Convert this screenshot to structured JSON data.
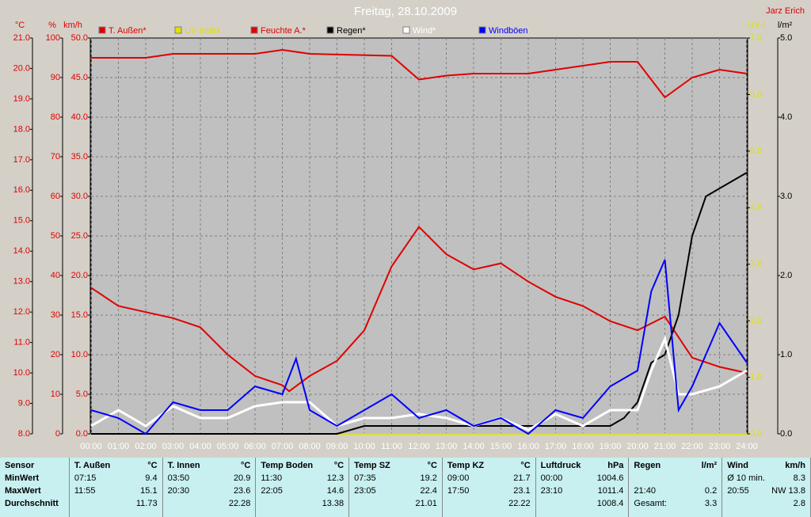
{
  "chart_data": {
    "type": "line",
    "title": "Freitag, 28.10.2009",
    "author": "Jarz Erich",
    "xlim": [
      0,
      24
    ],
    "xticks": [
      {
        "value": 0,
        "label": "00:00"
      },
      {
        "value": 1,
        "label": "01:00"
      },
      {
        "value": 2,
        "label": "02:00"
      },
      {
        "value": 3,
        "label": "03:00"
      },
      {
        "value": 4,
        "label": "04:00"
      },
      {
        "value": 5,
        "label": "05:00"
      },
      {
        "value": 6,
        "label": "06:00"
      },
      {
        "value": 7,
        "label": "07:00"
      },
      {
        "value": 8,
        "label": "08:00"
      },
      {
        "value": 9,
        "label": "09:00"
      },
      {
        "value": 10,
        "label": "10:00"
      },
      {
        "value": 11,
        "label": "11:00"
      },
      {
        "value": 12,
        "label": "12:00"
      },
      {
        "value": 13,
        "label": "13:00"
      },
      {
        "value": 14,
        "label": "14:00"
      },
      {
        "value": 15,
        "label": "15:00"
      },
      {
        "value": 16,
        "label": "16:00"
      },
      {
        "value": 17,
        "label": "17:00"
      },
      {
        "value": 18,
        "label": "18:00"
      },
      {
        "value": 19,
        "label": "19:00"
      },
      {
        "value": 20,
        "label": "20:00"
      },
      {
        "value": 21,
        "label": "21:00"
      },
      {
        "value": 22,
        "label": "22:00"
      },
      {
        "value": 23,
        "label": "23:00"
      },
      {
        "value": 24,
        "label": "24:00"
      }
    ],
    "grid": true,
    "axes": [
      {
        "label": "°C",
        "color": "#e00000",
        "lim": [
          8,
          21
        ],
        "ticks": [
          {
            "value": 8,
            "label": "8.0"
          },
          {
            "value": 9,
            "label": "9.0"
          },
          {
            "value": 10,
            "label": "10.0"
          },
          {
            "value": 11,
            "label": "11.0"
          },
          {
            "value": 12,
            "label": "12.0"
          },
          {
            "value": 13,
            "label": "13.0"
          },
          {
            "value": 14,
            "label": "14.0"
          },
          {
            "value": 15,
            "label": "15.0"
          },
          {
            "value": 16,
            "label": "16.0"
          },
          {
            "value": 17,
            "label": "17.0"
          },
          {
            "value": 18,
            "label": "18.0"
          },
          {
            "value": 19,
            "label": "19.0"
          },
          {
            "value": 20,
            "label": "20.0"
          },
          {
            "value": 21,
            "label": "21.0"
          }
        ]
      },
      {
        "label": "%",
        "color": "#e00000",
        "lim": [
          0,
          100
        ],
        "ticks": [
          0,
          10,
          20,
          30,
          40,
          50,
          60,
          70,
          80,
          90,
          100
        ]
      },
      {
        "label": "km/h",
        "color": "#e00000",
        "lim": [
          0,
          50
        ],
        "ticks": [
          {
            "value": 0,
            "label": "0.0"
          },
          {
            "value": 5,
            "label": "5.0"
          },
          {
            "value": 10,
            "label": "10.0"
          },
          {
            "value": 15,
            "label": "15.0"
          },
          {
            "value": 20,
            "label": "20.0"
          },
          {
            "value": 25,
            "label": "25.0"
          },
          {
            "value": 30,
            "label": "30.0"
          },
          {
            "value": 35,
            "label": "35.0"
          },
          {
            "value": 40,
            "label": "40.0"
          },
          {
            "value": 45,
            "label": "45.0"
          },
          {
            "value": 50,
            "label": "50.0"
          }
        ]
      },
      {
        "label": "UV-I",
        "color": "#e0e000",
        "lim": [
          0,
          7
        ],
        "ticks": [
          {
            "value": 0,
            "label": "0.0"
          },
          {
            "value": 1,
            "label": "1.0"
          },
          {
            "value": 2,
            "label": "2.0"
          },
          {
            "value": 3,
            "label": "3.0"
          },
          {
            "value": 4,
            "label": "4.0"
          },
          {
            "value": 5,
            "label": "5.0"
          },
          {
            "value": 6,
            "label": "6.0"
          },
          {
            "value": 7,
            "label": "7.0"
          }
        ]
      },
      {
        "label": "l/m²",
        "color": "#000000",
        "lim": [
          0,
          5
        ],
        "ticks": [
          {
            "value": 0,
            "label": "0.0"
          },
          {
            "value": 1,
            "label": "1.0"
          },
          {
            "value": 2,
            "label": "2.0"
          },
          {
            "value": 3,
            "label": "3.0"
          },
          {
            "value": 4,
            "label": "4.0"
          },
          {
            "value": 5,
            "label": "5.0"
          }
        ]
      }
    ],
    "series": [
      {
        "name": "T. Außen*",
        "color": "#e00000",
        "axis": 0,
        "x": [
          0,
          1,
          2,
          3,
          4,
          5,
          6,
          7,
          7.25,
          8,
          9,
          10,
          11,
          12,
          13,
          14,
          15,
          16,
          17,
          18,
          19,
          20,
          21,
          22,
          23,
          24
        ],
        "values": [
          12.8,
          12.2,
          12.0,
          11.8,
          11.5,
          10.6,
          9.9,
          9.6,
          9.4,
          9.9,
          10.4,
          11.4,
          13.5,
          14.8,
          13.9,
          13.4,
          13.6,
          13.0,
          12.5,
          12.2,
          11.7,
          11.4,
          11.85,
          10.5,
          10.2,
          10.0
        ]
      },
      {
        "name": "UV Index",
        "color": "#e0e000",
        "axis": 3,
        "x": [
          0,
          24
        ],
        "values": [
          0,
          0
        ]
      },
      {
        "name": "Feuchte A.*",
        "color": "#e00000",
        "axis": 1,
        "x": [
          0,
          2,
          3,
          6,
          7,
          8,
          11,
          12,
          13,
          14,
          16,
          17,
          19,
          20,
          21,
          22,
          23,
          24
        ],
        "values": [
          95,
          95,
          96,
          96,
          97,
          96,
          95.5,
          89.5,
          90.5,
          91,
          91,
          92,
          94,
          94,
          85,
          90,
          92,
          91
        ]
      },
      {
        "name": "Regen*",
        "color": "#000000",
        "axis": 4,
        "x": [
          0,
          9,
          10,
          19,
          19.5,
          20,
          20.5,
          21,
          21.5,
          22,
          22.5,
          23,
          24
        ],
        "values": [
          0,
          0,
          0.1,
          0.1,
          0.2,
          0.4,
          0.9,
          1.0,
          1.5,
          2.5,
          3.0,
          3.1,
          3.3
        ]
      },
      {
        "name": "Wind*",
        "color": "#ffffff",
        "axis": 2,
        "x": [
          0,
          1,
          2,
          3,
          4,
          5,
          6,
          7,
          8,
          9,
          10,
          11,
          12,
          13,
          14,
          15,
          16,
          17,
          18,
          19,
          20,
          20.5,
          21,
          21.5,
          22,
          23,
          24
        ],
        "values": [
          1,
          3,
          1,
          3.5,
          2,
          2,
          3.5,
          4,
          4,
          1,
          2,
          2,
          2.5,
          2,
          1,
          2,
          0.5,
          2.5,
          1,
          3,
          3,
          8,
          12,
          5,
          5,
          6,
          8
        ]
      },
      {
        "name": "Windböen",
        "color": "#0000ff",
        "axis": 2,
        "x": [
          0,
          1,
          2,
          3,
          4,
          5,
          6,
          7,
          7.5,
          8,
          9,
          10,
          11,
          12,
          13,
          14,
          15,
          16,
          17,
          18,
          19,
          20,
          20.5,
          21,
          21.5,
          22,
          23,
          24
        ],
        "values": [
          3,
          2,
          0,
          4,
          3,
          3,
          6,
          5,
          9.5,
          3,
          1,
          3,
          5,
          2,
          3,
          1,
          2,
          0,
          3,
          2,
          6,
          8,
          18,
          22,
          3,
          6,
          14,
          9
        ]
      }
    ]
  },
  "table": {
    "sensor": "Sensor",
    "rows": [
      "MinWert",
      "MaxWert",
      "Durchschnitt"
    ],
    "columns": [
      {
        "name": "T. Außen",
        "unit": "°C",
        "cells": [
          [
            "07:15",
            "9.4"
          ],
          [
            "11:55",
            "15.1"
          ],
          [
            null,
            "11.73"
          ]
        ]
      },
      {
        "name": "T. Innen",
        "unit": "°C",
        "cells": [
          [
            "03:50",
            "20.9"
          ],
          [
            "20:30",
            "23.6"
          ],
          [
            null,
            "22.28"
          ]
        ]
      },
      {
        "name": "Temp Boden",
        "unit": "°C",
        "cells": [
          [
            "11:30",
            "12.3"
          ],
          [
            "22:05",
            "14.6"
          ],
          [
            null,
            "13.38"
          ]
        ]
      },
      {
        "name": "Temp SZ",
        "unit": "°C",
        "cells": [
          [
            "07:35",
            "19.2"
          ],
          [
            "23:05",
            "22.4"
          ],
          [
            null,
            "21.01"
          ]
        ]
      },
      {
        "name": "Temp KZ",
        "unit": "°C",
        "cells": [
          [
            "09:00",
            "21.7"
          ],
          [
            "17:50",
            "23.1"
          ],
          [
            null,
            "22.22"
          ]
        ]
      },
      {
        "name": "Luftdruck",
        "unit": "hPa",
        "cells": [
          [
            "00:00",
            "1004.6"
          ],
          [
            "23:10",
            "1011.4"
          ],
          [
            null,
            "1008.4"
          ]
        ]
      },
      {
        "name": "Regen",
        "unit": "l/m²",
        "cells": [
          [
            null,
            null
          ],
          [
            "21:40",
            "0.2"
          ],
          [
            "Gesamt:",
            "3.3"
          ]
        ]
      },
      {
        "name": "Wind",
        "unit": "km/h",
        "cells": [
          [
            "Ø 10 min.",
            "8.3"
          ],
          [
            "20:55",
            "NW 13.8"
          ],
          [
            null,
            "2.8"
          ]
        ]
      }
    ]
  }
}
